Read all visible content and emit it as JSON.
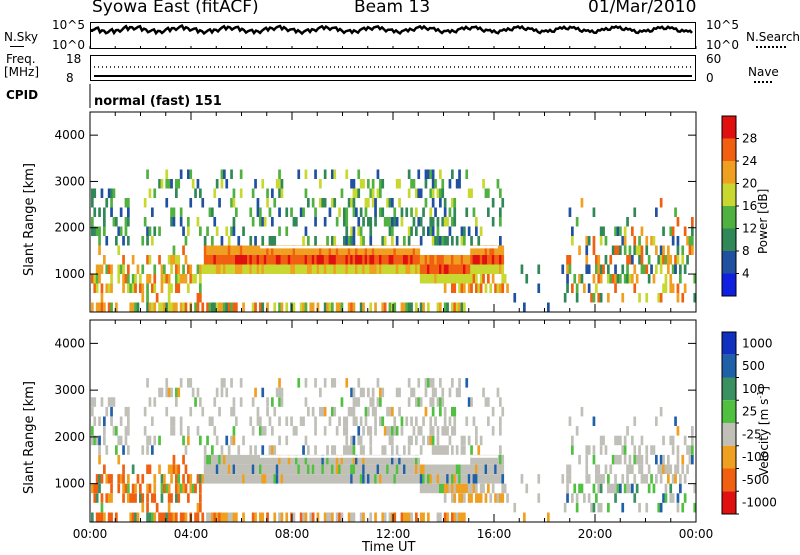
{
  "header": {
    "title": "Syowa East (fitACF)",
    "beam": "Beam 13",
    "date": "01/Mar/2010"
  },
  "side_labels": {
    "nsky": "N.Sky",
    "freq_top": "Freq.",
    "freq_unit": "[MHz]",
    "cpid": "CPID",
    "nsearch": "N.Search",
    "nave": "Nave"
  },
  "noise_panel": {
    "y_top": "10^5",
    "y_bottom": "10^0",
    "yr_top": "10^5",
    "yr_bottom": "10^0"
  },
  "freq_panel": {
    "y_top": "18",
    "y_bottom": "8",
    "yr_top": "60",
    "yr_bottom": "0"
  },
  "cpid_text": "normal (fast) 151",
  "axes": {
    "ylabel": "Slant Range [km]",
    "xlabel": "Time UT",
    "x_ticks": [
      "00:00",
      "04:00",
      "08:00",
      "12:00",
      "16:00",
      "20:00",
      "00:00"
    ],
    "y_ticks": [
      "1000",
      "2000",
      "3000",
      "4000"
    ]
  },
  "power_scale": {
    "label": "Power [dB]",
    "ticks": [
      "4",
      "8",
      "12",
      "16",
      "20",
      "24",
      "28"
    ],
    "colors": [
      "#1020e0",
      "#2050a0",
      "#308858",
      "#50b040",
      "#c8d830",
      "#f0a020",
      "#f06010",
      "#e01010"
    ]
  },
  "velocity_scale": {
    "label_main": "Velocity [m s",
    "label_sup": "-1",
    "label_end": "]",
    "ticks": [
      "1000",
      "500",
      "100",
      "25",
      "-25",
      "-100",
      "-500",
      "-1000"
    ],
    "colors": [
      "#1030c0",
      "#2060a8",
      "#3a9060",
      "#50c040",
      "#c0c0b8",
      "#f0a020",
      "#f06010",
      "#e01010"
    ]
  },
  "chart_data": {
    "type": "heatmap",
    "title": "Syowa East (fitACF)",
    "xlabel": "Time UT",
    "ylabel": "Slant Range [km]",
    "x_range_hours": [
      0,
      24
    ],
    "y_range_km": [
      180,
      4500
    ],
    "panels": [
      {
        "name": "Power [dB]",
        "range": [
          0,
          30
        ]
      },
      {
        "name": "Velocity [m s-1]",
        "range": [
          -1000,
          1000
        ]
      }
    ]
  }
}
